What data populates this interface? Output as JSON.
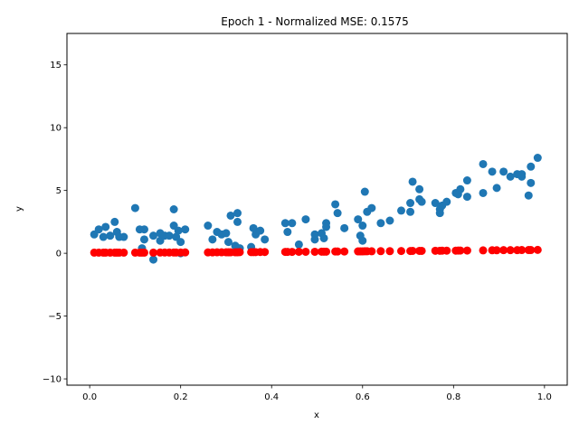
{
  "chart_data": {
    "type": "scatter",
    "title": "Epoch 1 - Normalized MSE: 0.1575",
    "xlabel": "x",
    "ylabel": "y",
    "xlim": [
      -0.05,
      1.05
    ],
    "ylim": [
      -10.5,
      17.5
    ],
    "xticks": [
      0.0,
      0.2,
      0.4,
      0.6,
      0.8,
      1.0
    ],
    "xtick_labels": [
      "0.0",
      "0.2",
      "0.4",
      "0.6",
      "0.8",
      "1.0"
    ],
    "yticks": [
      -10,
      -5,
      0,
      5,
      10,
      15
    ],
    "ytick_labels": [
      "−10",
      "−5",
      "0",
      "5",
      "10",
      "15"
    ],
    "grid": false,
    "series": [
      {
        "color": "#1f77b4",
        "points": [
          [
            0.01,
            1.5
          ],
          [
            0.02,
            1.9
          ],
          [
            0.03,
            1.3
          ],
          [
            0.035,
            2.1
          ],
          [
            0.045,
            1.4
          ],
          [
            0.055,
            2.5
          ],
          [
            0.06,
            1.7
          ],
          [
            0.065,
            1.3
          ],
          [
            0.075,
            1.3
          ],
          [
            0.1,
            3.6
          ],
          [
            0.11,
            1.9
          ],
          [
            0.115,
            0.4
          ],
          [
            0.12,
            1.9
          ],
          [
            0.12,
            1.1
          ],
          [
            0.14,
            -0.5
          ],
          [
            0.14,
            1.4
          ],
          [
            0.155,
            1.0
          ],
          [
            0.155,
            1.6
          ],
          [
            0.165,
            1.4
          ],
          [
            0.175,
            1.4
          ],
          [
            0.185,
            3.5
          ],
          [
            0.185,
            2.2
          ],
          [
            0.19,
            1.3
          ],
          [
            0.195,
            1.8
          ],
          [
            0.2,
            0.0
          ],
          [
            0.2,
            0.9
          ],
          [
            0.21,
            1.9
          ],
          [
            0.26,
            2.2
          ],
          [
            0.27,
            1.1
          ],
          [
            0.28,
            1.7
          ],
          [
            0.29,
            1.5
          ],
          [
            0.3,
            1.6
          ],
          [
            0.305,
            0.9
          ],
          [
            0.31,
            3.0
          ],
          [
            0.32,
            0.6
          ],
          [
            0.325,
            2.5
          ],
          [
            0.325,
            3.2
          ],
          [
            0.33,
            0.4
          ],
          [
            0.355,
            0.5
          ],
          [
            0.36,
            2.0
          ],
          [
            0.365,
            1.5
          ],
          [
            0.375,
            1.8
          ],
          [
            0.385,
            1.1
          ],
          [
            0.43,
            2.4
          ],
          [
            0.435,
            1.7
          ],
          [
            0.445,
            2.4
          ],
          [
            0.46,
            0.7
          ],
          [
            0.475,
            2.7
          ],
          [
            0.495,
            1.5
          ],
          [
            0.495,
            1.1
          ],
          [
            0.51,
            1.6
          ],
          [
            0.515,
            1.2
          ],
          [
            0.52,
            2.4
          ],
          [
            0.52,
            2.1
          ],
          [
            0.54,
            3.9
          ],
          [
            0.545,
            3.2
          ],
          [
            0.56,
            2.0
          ],
          [
            0.59,
            2.7
          ],
          [
            0.595,
            1.4
          ],
          [
            0.6,
            1.0
          ],
          [
            0.6,
            2.2
          ],
          [
            0.605,
            4.9
          ],
          [
            0.61,
            3.3
          ],
          [
            0.62,
            3.6
          ],
          [
            0.64,
            2.4
          ],
          [
            0.66,
            2.6
          ],
          [
            0.685,
            3.4
          ],
          [
            0.705,
            3.3
          ],
          [
            0.705,
            4.0
          ],
          [
            0.71,
            5.7
          ],
          [
            0.725,
            4.3
          ],
          [
            0.725,
            5.1
          ],
          [
            0.73,
            4.1
          ],
          [
            0.76,
            4.0
          ],
          [
            0.77,
            3.5
          ],
          [
            0.77,
            3.2
          ],
          [
            0.775,
            3.8
          ],
          [
            0.785,
            4.1
          ],
          [
            0.805,
            4.8
          ],
          [
            0.81,
            4.7
          ],
          [
            0.815,
            5.1
          ],
          [
            0.83,
            5.8
          ],
          [
            0.83,
            4.5
          ],
          [
            0.865,
            7.1
          ],
          [
            0.865,
            4.8
          ],
          [
            0.885,
            6.5
          ],
          [
            0.895,
            5.2
          ],
          [
            0.91,
            6.5
          ],
          [
            0.925,
            6.1
          ],
          [
            0.94,
            6.3
          ],
          [
            0.95,
            6.1
          ],
          [
            0.95,
            6.3
          ],
          [
            0.965,
            4.6
          ],
          [
            0.97,
            5.6
          ],
          [
            0.97,
            6.9
          ],
          [
            0.985,
            7.6
          ]
        ]
      },
      {
        "color": "#ff0000",
        "points": [
          [
            0.01,
            0.05
          ],
          [
            0.02,
            0.05
          ],
          [
            0.03,
            0.05
          ],
          [
            0.035,
            0.05
          ],
          [
            0.045,
            0.05
          ],
          [
            0.055,
            0.05
          ],
          [
            0.06,
            0.05
          ],
          [
            0.065,
            0.05
          ],
          [
            0.075,
            0.05
          ],
          [
            0.1,
            0.05
          ],
          [
            0.11,
            0.05
          ],
          [
            0.115,
            0.05
          ],
          [
            0.12,
            0.05
          ],
          [
            0.14,
            0.05
          ],
          [
            0.155,
            0.06
          ],
          [
            0.165,
            0.06
          ],
          [
            0.175,
            0.06
          ],
          [
            0.185,
            0.06
          ],
          [
            0.19,
            0.06
          ],
          [
            0.2,
            0.06
          ],
          [
            0.21,
            0.07
          ],
          [
            0.26,
            0.07
          ],
          [
            0.27,
            0.07
          ],
          [
            0.28,
            0.08
          ],
          [
            0.29,
            0.08
          ],
          [
            0.3,
            0.08
          ],
          [
            0.305,
            0.08
          ],
          [
            0.31,
            0.08
          ],
          [
            0.32,
            0.08
          ],
          [
            0.325,
            0.08
          ],
          [
            0.33,
            0.09
          ],
          [
            0.355,
            0.09
          ],
          [
            0.36,
            0.09
          ],
          [
            0.365,
            0.09
          ],
          [
            0.375,
            0.1
          ],
          [
            0.385,
            0.1
          ],
          [
            0.43,
            0.11
          ],
          [
            0.435,
            0.11
          ],
          [
            0.445,
            0.11
          ],
          [
            0.46,
            0.12
          ],
          [
            0.475,
            0.12
          ],
          [
            0.495,
            0.12
          ],
          [
            0.51,
            0.13
          ],
          [
            0.515,
            0.13
          ],
          [
            0.52,
            0.13
          ],
          [
            0.54,
            0.14
          ],
          [
            0.545,
            0.14
          ],
          [
            0.56,
            0.14
          ],
          [
            0.59,
            0.15
          ],
          [
            0.595,
            0.15
          ],
          [
            0.6,
            0.15
          ],
          [
            0.605,
            0.16
          ],
          [
            0.61,
            0.16
          ],
          [
            0.62,
            0.16
          ],
          [
            0.64,
            0.17
          ],
          [
            0.66,
            0.17
          ],
          [
            0.685,
            0.18
          ],
          [
            0.705,
            0.18
          ],
          [
            0.71,
            0.19
          ],
          [
            0.725,
            0.19
          ],
          [
            0.73,
            0.19
          ],
          [
            0.76,
            0.2
          ],
          [
            0.77,
            0.2
          ],
          [
            0.775,
            0.21
          ],
          [
            0.785,
            0.21
          ],
          [
            0.805,
            0.21
          ],
          [
            0.81,
            0.22
          ],
          [
            0.815,
            0.22
          ],
          [
            0.83,
            0.22
          ],
          [
            0.865,
            0.23
          ],
          [
            0.885,
            0.24
          ],
          [
            0.895,
            0.24
          ],
          [
            0.91,
            0.25
          ],
          [
            0.925,
            0.25
          ],
          [
            0.94,
            0.25
          ],
          [
            0.95,
            0.26
          ],
          [
            0.965,
            0.26
          ],
          [
            0.97,
            0.26
          ],
          [
            0.985,
            0.27
          ]
        ]
      }
    ]
  }
}
